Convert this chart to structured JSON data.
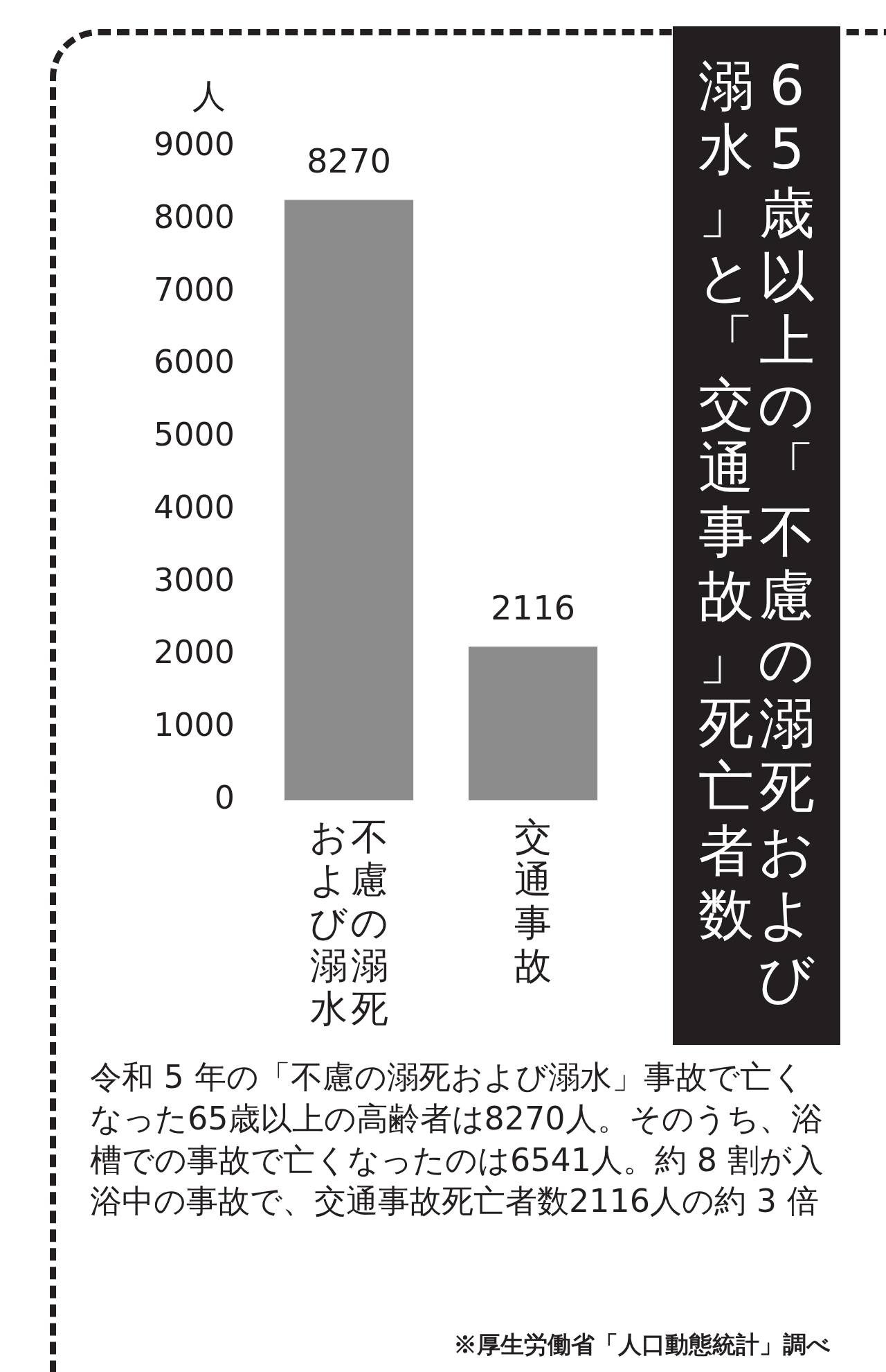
{
  "chart_data": {
    "type": "bar",
    "title": "65歳以上の「不慮の溺死および溺水」と「交通事故」死亡者数",
    "ylabel": "人",
    "categories": [
      "不慮の溺死および溺水",
      "交通事故"
    ],
    "values": [
      8270,
      2116
    ],
    "color": "#8c8c8c",
    "ylim": [
      0,
      9000
    ],
    "yticks": [
      0,
      1000,
      2000,
      3000,
      4000,
      5000,
      6000,
      7000,
      8000,
      9000
    ],
    "grid": false,
    "legend": false,
    "data_labels": true,
    "annotations": [
      "令和 5 年の「不慮の溺死および溺水」事故で亡くなった65歳以上の高齢者は8270人。そのうち、浴槽での事故で亡くなったのは6541人。約 8 割が入浴中の事故で、交通事故死亡者数2116人の約 3 倍",
      "※厚生労働省「人口動態統計」調べ"
    ]
  }
}
